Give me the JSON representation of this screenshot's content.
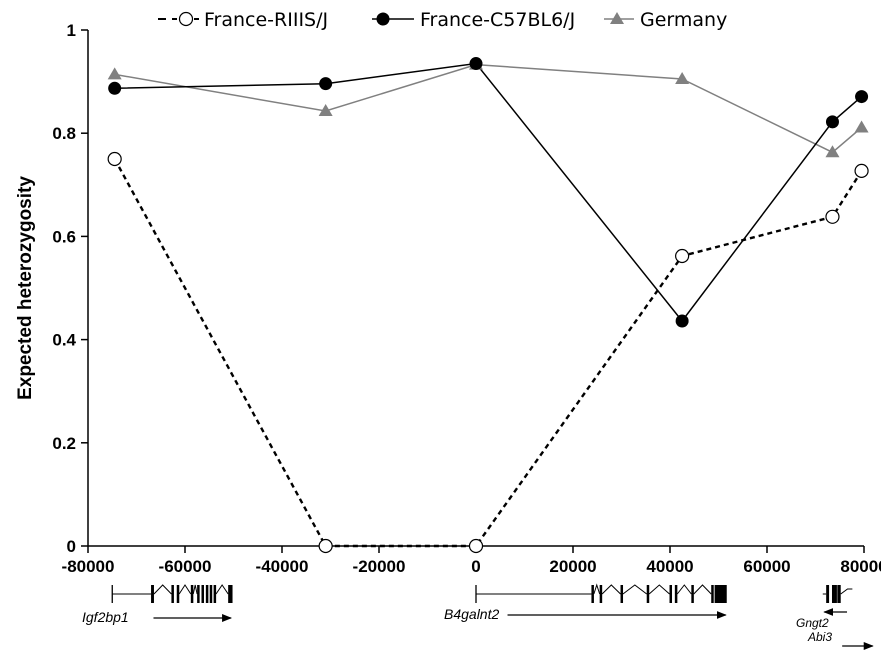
{
  "chart_data": {
    "type": "line",
    "title": "",
    "xlabel": "",
    "ylabel": "Expected heterozygosity",
    "xlim": [
      -80000,
      80000
    ],
    "ylim": [
      0,
      1
    ],
    "x_ticks": [
      -80000,
      -60000,
      -40000,
      -20000,
      0,
      20000,
      40000,
      60000,
      80000
    ],
    "x_tick_labels": [
      "-80000",
      "-60000",
      "-40000",
      "-20000",
      "0",
      "20000",
      "40000",
      "60000",
      "80000"
    ],
    "y_ticks": [
      0,
      0.2,
      0.4,
      0.6,
      0.8,
      1
    ],
    "y_tick_labels": [
      "0",
      "0.2",
      "0.4",
      "0.6",
      "0.8",
      "1"
    ],
    "grid": false,
    "legend_position": "top",
    "series": [
      {
        "name": "France-RIIIS/J",
        "color": "#000000",
        "line_style": "dashed",
        "marker": "open-circle",
        "x": [
          -74500,
          -31000,
          0,
          42500,
          73500,
          79500
        ],
        "values": [
          0.75,
          0.0,
          0.0,
          0.562,
          0.638,
          0.727
        ]
      },
      {
        "name": "France-C57BL6/J",
        "color": "#000000",
        "line_style": "solid",
        "marker": "filled-circle",
        "x": [
          -74500,
          -31000,
          0,
          42500,
          73500,
          79500
        ],
        "values": [
          0.887,
          0.896,
          0.935,
          0.436,
          0.822,
          0.871
        ]
      },
      {
        "name": "Germany",
        "color": "#808080",
        "line_style": "solid",
        "marker": "filled-triangle",
        "x": [
          -74500,
          -31000,
          0,
          42500,
          73500,
          79500
        ],
        "values": [
          0.914,
          0.843,
          0.933,
          0.905,
          0.763,
          0.811
        ]
      }
    ],
    "genes": [
      {
        "label": "Igf2bp1",
        "start": -75000,
        "end": -50000,
        "direction": "right",
        "exons": [
          [
            -67000,
            -66400
          ],
          [
            -62800,
            -62300
          ],
          [
            -61700,
            -61200
          ],
          [
            -58800,
            -58300
          ],
          [
            -57500,
            -57000
          ],
          [
            -56600,
            -56100
          ],
          [
            -55700,
            -55200
          ],
          [
            -54900,
            -54400
          ],
          [
            -54100,
            -53600
          ],
          [
            -51100,
            -50200
          ]
        ]
      },
      {
        "label": "B4galnt2",
        "start": 0,
        "end": 51500,
        "direction": "right",
        "exons": [
          [
            23800,
            24300
          ],
          [
            25500,
            26000
          ],
          [
            29800,
            30300
          ],
          [
            35200,
            35700
          ],
          [
            39900,
            40400
          ],
          [
            41000,
            41500
          ],
          [
            44400,
            44900
          ],
          [
            48500,
            49000
          ],
          [
            49200,
            50000
          ],
          [
            50000,
            51700
          ]
        ]
      },
      {
        "label": "Gngt2",
        "start": 71500,
        "end": 76500,
        "direction": "left",
        "exons": [
          [
            72200,
            72800
          ],
          [
            73400,
            73700
          ],
          [
            73900,
            74200
          ],
          [
            74500,
            75200
          ]
        ]
      },
      {
        "label": "Abi3",
        "start": 76000,
        "end": 82000,
        "direction": "right",
        "exons": []
      }
    ]
  }
}
